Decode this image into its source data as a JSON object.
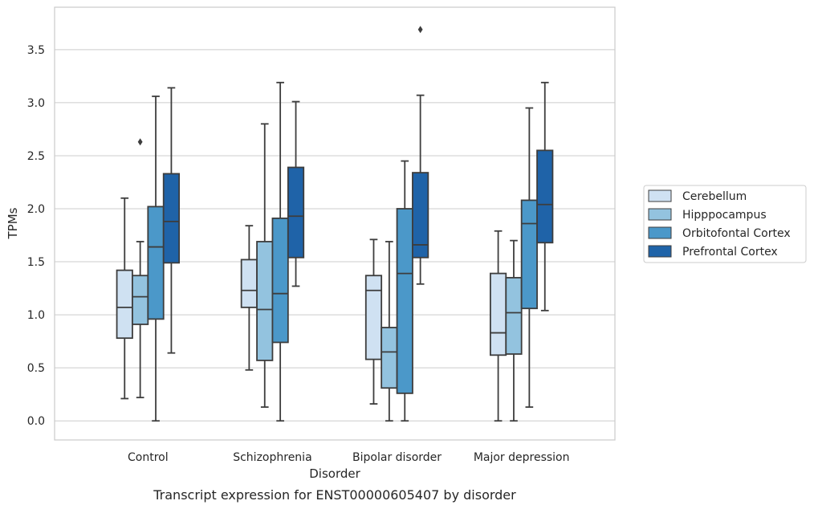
{
  "chart_data": {
    "type": "boxplot",
    "caption": "Transcript expression for ENST00000605407 by disorder",
    "xlabel": "Disorder",
    "ylabel": "TPMs",
    "ylim": [
      -0.18,
      3.9
    ],
    "yticks": [
      0.0,
      0.5,
      1.0,
      1.5,
      2.0,
      2.5,
      3.0,
      3.5
    ],
    "ytick_labels": [
      "0.0",
      "0.5",
      "1.0",
      "1.5",
      "2.0",
      "2.5",
      "3.0",
      "3.5"
    ],
    "categories": [
      "Control",
      "Schizophrenia",
      "Bipolar disorder",
      "Major depression"
    ],
    "grid": "horizontal",
    "legend_position": "right",
    "series": [
      {
        "name": "Cerebellum",
        "color": "#cfe1f2",
        "boxes": [
          {
            "min": 0.21,
            "q1": 0.78,
            "median": 1.07,
            "q3": 1.42,
            "max": 2.1,
            "outliers": []
          },
          {
            "min": 0.48,
            "q1": 1.07,
            "median": 1.23,
            "q3": 1.52,
            "max": 1.84,
            "outliers": []
          },
          {
            "min": 0.16,
            "q1": 0.58,
            "median": 1.23,
            "q3": 1.37,
            "max": 1.71,
            "outliers": []
          },
          {
            "min": 0.0,
            "q1": 0.62,
            "median": 0.83,
            "q3": 1.39,
            "max": 1.79,
            "outliers": []
          }
        ]
      },
      {
        "name": "Hipppocampus",
        "color": "#93c3df",
        "boxes": [
          {
            "min": 0.22,
            "q1": 0.91,
            "median": 1.17,
            "q3": 1.37,
            "max": 1.69,
            "outliers": [
              2.63
            ]
          },
          {
            "min": 0.13,
            "q1": 0.57,
            "median": 1.05,
            "q3": 1.69,
            "max": 2.8,
            "outliers": []
          },
          {
            "min": 0.0,
            "q1": 0.31,
            "median": 0.65,
            "q3": 0.88,
            "max": 1.69,
            "outliers": []
          },
          {
            "min": 0.0,
            "q1": 0.63,
            "median": 1.02,
            "q3": 1.35,
            "max": 1.7,
            "outliers": []
          }
        ]
      },
      {
        "name": "Orbitofontal Cortex",
        "color": "#4b98c9",
        "boxes": [
          {
            "min": 0.0,
            "q1": 0.96,
            "median": 1.64,
            "q3": 2.02,
            "max": 3.06,
            "outliers": []
          },
          {
            "min": 0.0,
            "q1": 0.74,
            "median": 1.2,
            "q3": 1.91,
            "max": 3.19,
            "outliers": []
          },
          {
            "min": 0.0,
            "q1": 0.26,
            "median": 1.39,
            "q3": 2.0,
            "max": 2.45,
            "outliers": []
          },
          {
            "min": 0.13,
            "q1": 1.06,
            "median": 1.86,
            "q3": 2.08,
            "max": 2.95,
            "outliers": []
          }
        ]
      },
      {
        "name": "Prefrontal Cortex",
        "color": "#1f63a8",
        "boxes": [
          {
            "min": 0.64,
            "q1": 1.49,
            "median": 1.88,
            "q3": 2.33,
            "max": 3.14,
            "outliers": []
          },
          {
            "min": 1.27,
            "q1": 1.54,
            "median": 1.93,
            "q3": 2.39,
            "max": 3.01,
            "outliers": []
          },
          {
            "min": 1.29,
            "q1": 1.54,
            "median": 1.66,
            "q3": 2.34,
            "max": 3.07,
            "outliers": [
              3.69
            ]
          },
          {
            "min": 1.04,
            "q1": 1.68,
            "median": 2.04,
            "q3": 2.55,
            "max": 3.19,
            "outliers": []
          }
        ]
      }
    ]
  }
}
